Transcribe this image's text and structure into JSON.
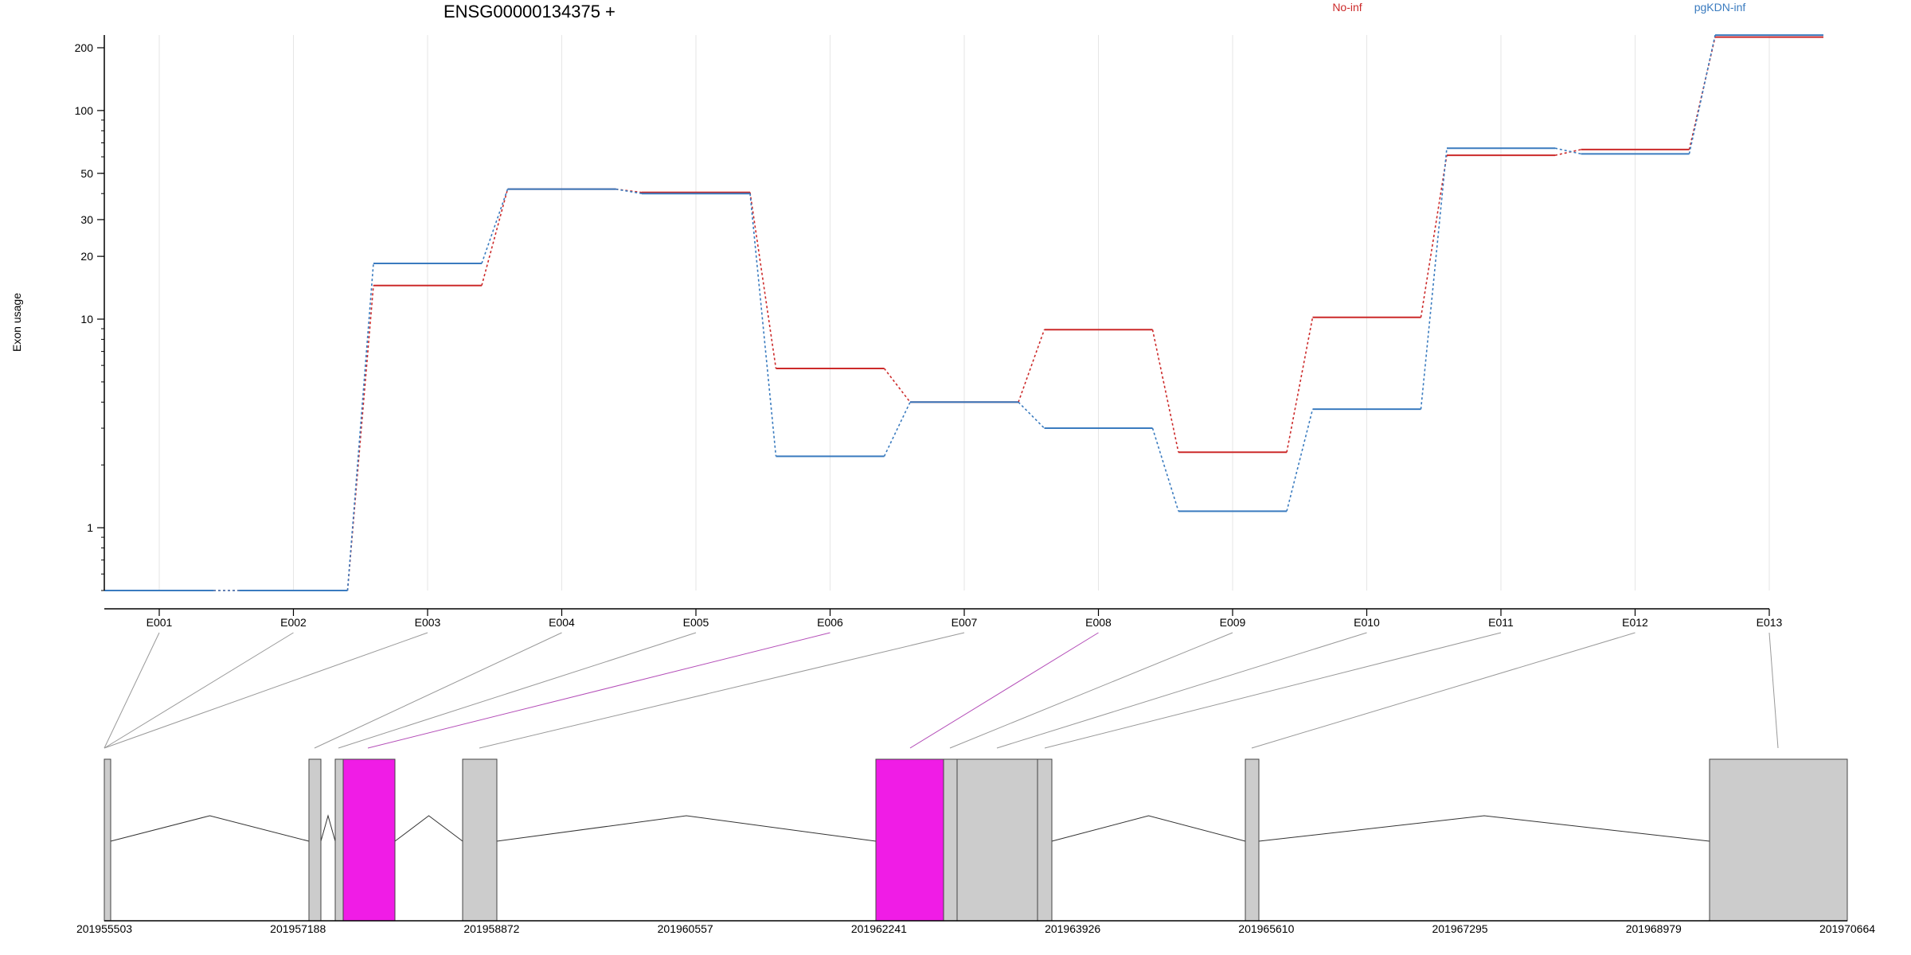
{
  "chart_data": {
    "type": "line",
    "title": "ENSG00000134375 +",
    "ylabel": "Exon usage",
    "yscale": "log",
    "ylim": [
      0.5,
      250
    ],
    "yticks": [
      1,
      10,
      20,
      30,
      50,
      100,
      200
    ],
    "categories": [
      "E001",
      "E002",
      "E003",
      "E004",
      "E005",
      "E006",
      "E007",
      "E008",
      "E009",
      "E010",
      "E011",
      "E012",
      "E013"
    ],
    "series": [
      {
        "name": "No-inf",
        "color": "#CC2A2A",
        "values": [
          0.5,
          0.5,
          14.5,
          42,
          40.5,
          5.8,
          4.0,
          8.9,
          2.3,
          10.2,
          61,
          65,
          225
        ]
      },
      {
        "name": "pgKDN-inf",
        "color": "#3A7BBF",
        "values": [
          0.5,
          0.5,
          18.5,
          42,
          40.0,
          2.2,
          4.0,
          3.0,
          1.2,
          3.7,
          66,
          62,
          230
        ]
      }
    ],
    "genomic_axis": {
      "ticks": [
        "201955503",
        "201957188",
        "201958872",
        "201960557",
        "201962241",
        "201963926",
        "201965610",
        "201967295",
        "201968979",
        "201970664"
      ]
    },
    "exon_colors": {
      "default": "#CCCCCC",
      "highlight": "#F01CE6"
    }
  }
}
